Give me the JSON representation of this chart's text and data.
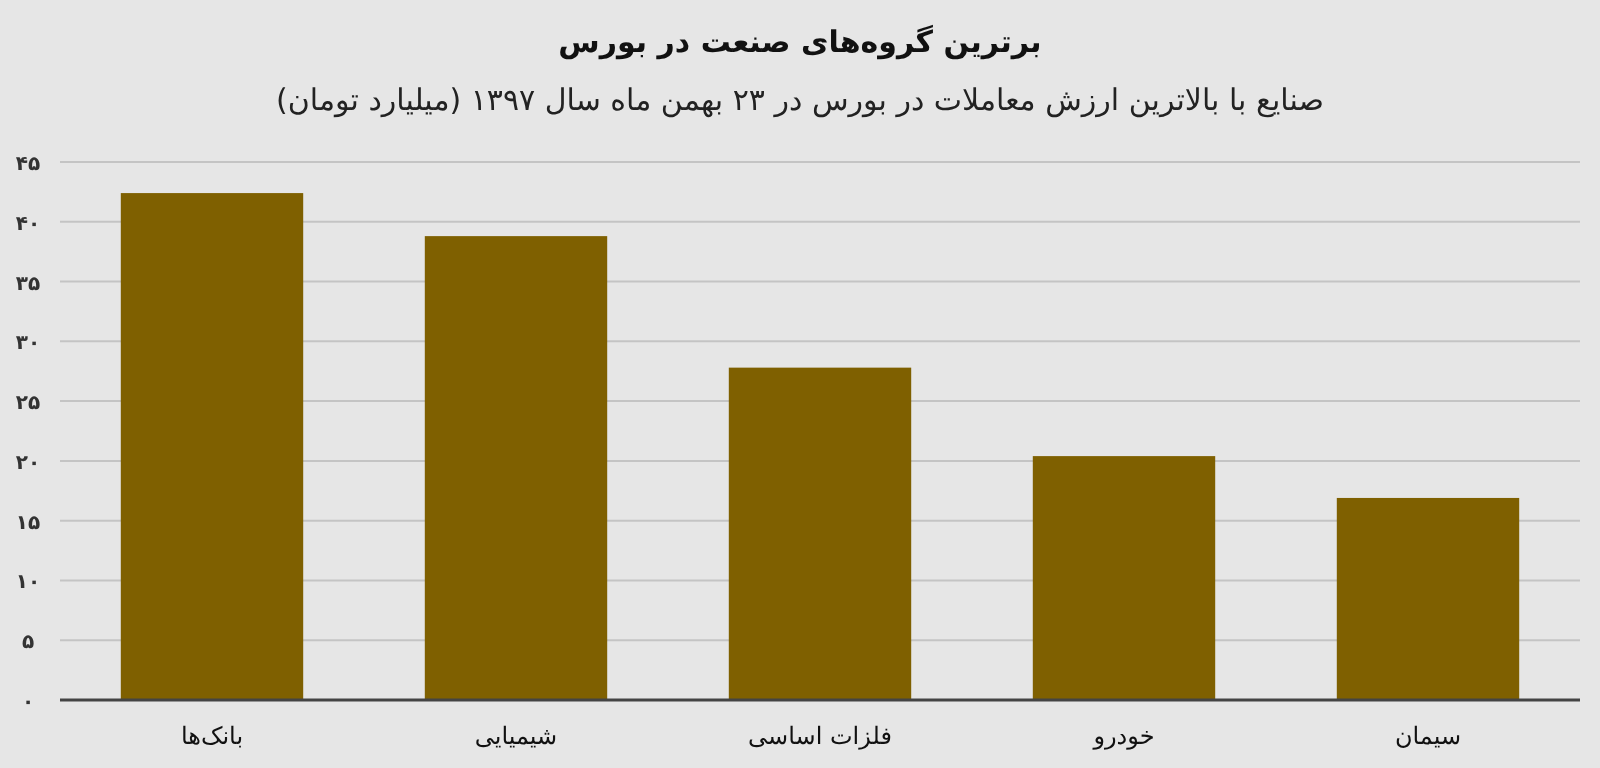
{
  "chart_data": {
    "type": "bar",
    "title": "برترین گروه‌های صنعت در بورس",
    "subtitle": "صنایع با بالاترین ارزش معاملات در بورس در ۲۳ بهمن ماه سال ۱۳۹۷ (میلیارد تومان)",
    "categories": [
      "بانک‌ها",
      "شیمیایی",
      "فلزات اساسی",
      "خودرو",
      "سیمان"
    ],
    "values": [
      42.4,
      38.8,
      27.8,
      20.4,
      16.9
    ],
    "color": "#7f6000",
    "ylim": [
      0,
      45
    ],
    "yticks": [
      {
        "value": 0,
        "label": "۰"
      },
      {
        "value": 5,
        "label": "۵"
      },
      {
        "value": 10,
        "label": "۱۰"
      },
      {
        "value": 15,
        "label": "۱۵"
      },
      {
        "value": 20,
        "label": "۲۰"
      },
      {
        "value": 25,
        "label": "۲۵"
      },
      {
        "value": 30,
        "label": "۳۰"
      },
      {
        "value": 35,
        "label": "۳۵"
      },
      {
        "value": 40,
        "label": "۴۰"
      },
      {
        "value": 45,
        "label": "۴۵"
      }
    ],
    "grid": "y"
  }
}
